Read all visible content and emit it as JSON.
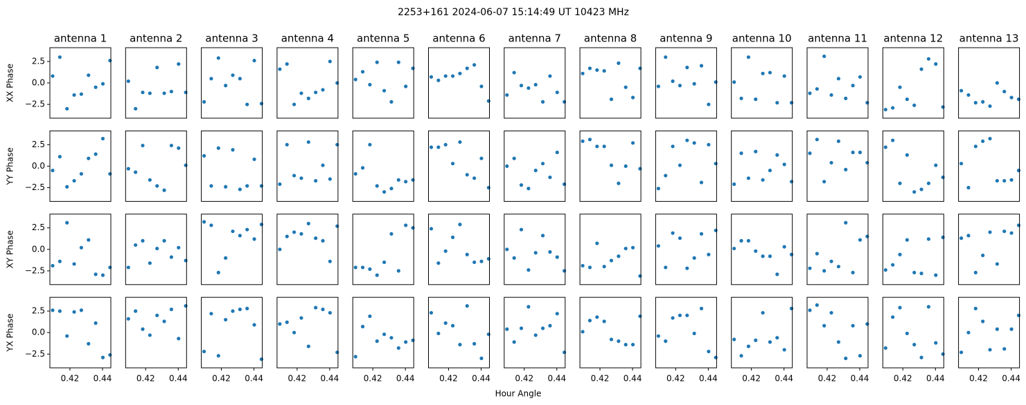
{
  "chart_data": {
    "type": "scatter",
    "title": "2253+161  2024-06-07 15:14:49 UT  10423 MHz",
    "xlabel": "Hour Angle",
    "color": "#1f77b4",
    "x": [
      0.4094,
      0.4138,
      0.4182,
      0.4226,
      0.427,
      0.4314,
      0.4358,
      0.4402,
      0.4446
    ],
    "xlim": [
      0.4077,
      0.4451
    ],
    "xticks": [
      0.42,
      0.44
    ],
    "ylim": [
      -4.1,
      4.1
    ],
    "yticks": [
      {
        "value": 2.5,
        "label": "2.5"
      },
      {
        "value": 0,
        "label": "0.0"
      },
      {
        "value": -2.5,
        "label": "−2.5"
      }
    ],
    "columns": [
      "antenna 1",
      "antenna 2",
      "antenna 3",
      "antenna 4",
      "antenna 5",
      "antenna 6",
      "antenna 7",
      "antenna 8",
      "antenna 9",
      "antenna 10",
      "antenna 11",
      "antenna 12",
      "antenna 13"
    ],
    "rows": [
      {
        "name": "XX Phase",
        "panels": [
          [
            0.8,
            3.0,
            -3.0,
            -1.4,
            -1.3,
            0.9,
            -0.5,
            -0.1,
            2.6
          ],
          [
            0.2,
            -3.0,
            -1.1,
            -1.2,
            1.8,
            -1.2,
            -1.0,
            2.2,
            -1.1
          ],
          [
            -2.2,
            0.5,
            2.9,
            -0.3,
            0.9,
            0.5,
            -2.5,
            2.6,
            -2.4
          ],
          [
            1.6,
            2.2,
            -2.5,
            -1.2,
            -1.8,
            -1.1,
            -0.8,
            2.5,
            0.0
          ],
          [
            0.4,
            1.3,
            -0.2,
            2.4,
            -0.9,
            -2.2,
            2.4,
            -0.4,
            1.7
          ],
          [
            0.7,
            0.3,
            0.8,
            0.8,
            1.1,
            1.7,
            2.1,
            -0.4,
            -2.1
          ],
          [
            -1.4,
            1.2,
            -0.3,
            -0.6,
            -0.2,
            -2.2,
            0.8,
            -1.1,
            -2.2
          ],
          [
            1.1,
            1.7,
            1.5,
            1.4,
            -1.9,
            2.3,
            -0.5,
            -1.7,
            1.7
          ],
          [
            -0.4,
            3.0,
            0.2,
            -0.3,
            1.8,
            -0.1,
            2.0,
            -2.5,
            0.1
          ],
          [
            0.1,
            -1.8,
            3.0,
            -1.9,
            1.1,
            1.2,
            -2.3,
            0.8,
            -2.3
          ],
          [
            -1.2,
            -0.7,
            3.1,
            -1.4,
            0.5,
            -1.8,
            -0.3,
            0.7,
            -2.3
          ],
          [
            -3.1,
            -2.9,
            -0.5,
            -1.9,
            -2.6,
            1.6,
            2.8,
            2.2,
            -2.8
          ],
          [
            -0.9,
            -1.4,
            -2.3,
            -2.2,
            -2.7,
            0.0,
            -1.0,
            -1.7,
            -1.9
          ]
        ]
      },
      {
        "name": "YY Phase",
        "panels": [
          [
            -0.5,
            1.1,
            -2.4,
            -1.7,
            -0.9,
            0.9,
            1.4,
            3.2,
            -0.9
          ],
          [
            -0.3,
            -0.7,
            2.4,
            -1.6,
            -2.3,
            -2.8,
            2.4,
            2.1,
            0.1
          ],
          [
            1.2,
            -2.3,
            2.1,
            -2.4,
            1.9,
            -2.7,
            -2.3,
            0.8,
            -2.3
          ],
          [
            -2.1,
            2.5,
            -1.1,
            -1.4,
            2.8,
            -1.7,
            0.1,
            -1.5,
            2.5
          ],
          [
            -0.9,
            -0.2,
            2.5,
            -2.3,
            -3.0,
            -2.6,
            -1.6,
            -1.8,
            -1.6
          ],
          [
            2.2,
            2.2,
            2.5,
            0.3,
            2.8,
            -1.0,
            -1.4,
            0.9,
            -2.5
          ],
          [
            0.0,
            0.9,
            -2.2,
            -2.6,
            -0.5,
            0.3,
            -1.3,
            1.6,
            -2.1
          ],
          [
            2.9,
            3.1,
            2.3,
            2.3,
            0.1,
            -2.0,
            0.0,
            2.7,
            -0.3
          ],
          [
            -2.6,
            -1.1,
            2.3,
            0.1,
            3.0,
            2.7,
            -1.9,
            2.5,
            0.3
          ],
          [
            -2.1,
            1.5,
            -1.4,
            1.7,
            -1.6,
            -0.5,
            1.3,
            0.2,
            -1.8
          ],
          [
            1.5,
            3.1,
            -1.8,
            0.4,
            2.9,
            -0.4,
            1.6,
            1.6,
            0.4
          ],
          [
            2.2,
            3.0,
            -2.0,
            1.3,
            -3.0,
            -2.7,
            -2.0,
            0.1,
            -1.3
          ],
          [
            0.3,
            -2.5,
            2.3,
            2.9,
            3.2,
            -1.7,
            -1.7,
            -1.6,
            -0.5
          ]
        ]
      },
      {
        "name": "XY Phase",
        "panels": [
          [
            -1.9,
            -1.4,
            3.1,
            -1.7,
            0.2,
            1.1,
            -2.9,
            -3.0,
            -2.1
          ],
          [
            -2.1,
            0.5,
            1.0,
            -1.6,
            0.1,
            1.0,
            -0.9,
            0.2,
            -1.3
          ],
          [
            3.2,
            2.8,
            -2.7,
            -1.0,
            2.1,
            1.6,
            2.3,
            1.2,
            2.9
          ],
          [
            0.0,
            1.5,
            2.0,
            1.8,
            3.0,
            1.3,
            1.0,
            -1.4,
            2.7
          ],
          [
            -2.1,
            -2.1,
            -2.3,
            -3.0,
            -1.5,
            1.8,
            -2.5,
            2.8,
            2.5
          ],
          [
            2.4,
            -1.6,
            -0.2,
            1.4,
            2.9,
            -0.6,
            -1.5,
            -1.4,
            -1.1
          ],
          [
            0.0,
            -1.0,
            2.3,
            -2.4,
            -0.4,
            1.6,
            -0.3,
            -0.9,
            -2.5
          ],
          [
            -1.9,
            -2.1,
            0.7,
            -2.0,
            -1.3,
            -0.8,
            0.1,
            0.2,
            -3.1
          ],
          [
            0.4,
            -2.1,
            1.9,
            1.3,
            -2.2,
            -1.0,
            1.8,
            -0.6,
            2.2
          ],
          [
            0.1,
            1.0,
            1.0,
            -0.2,
            -0.8,
            -0.8,
            -2.9,
            0.3,
            -0.6
          ],
          [
            -2.2,
            -0.5,
            -2.5,
            -1.4,
            -2.0,
            3.1,
            -2.7,
            1.1,
            1.5
          ],
          [
            -2.4,
            -1.8,
            -0.6,
            1.1,
            -2.7,
            -2.8,
            1.2,
            -3.0,
            1.4
          ],
          [
            1.3,
            1.6,
            -2.7,
            -0.7,
            2.0,
            -1.7,
            2.1,
            1.9,
            2.8
          ]
        ]
      },
      {
        "name": "YX Phase",
        "panels": [
          [
            2.6,
            2.5,
            -0.4,
            2.4,
            2.6,
            -1.3,
            1.1,
            -2.9,
            -2.6
          ],
          [
            1.6,
            2.5,
            0.4,
            -0.3,
            2.0,
            1.3,
            2.7,
            -0.7,
            3.1
          ],
          [
            -2.2,
            2.2,
            -2.7,
            1.5,
            2.5,
            2.7,
            2.8,
            0.9,
            -3.1
          ],
          [
            1.0,
            1.2,
            0.0,
            1.7,
            -1.6,
            2.9,
            2.7,
            2.3,
            -2.3
          ],
          [
            -2.8,
            0.7,
            1.9,
            -1.0,
            -0.2,
            -0.6,
            -1.8,
            -1.1,
            -0.9
          ],
          [
            2.3,
            -0.1,
            1.1,
            0.8,
            -1.4,
            3.1,
            -1.3,
            -3.0,
            -0.2
          ],
          [
            0.4,
            -1.1,
            0.5,
            3.0,
            -0.3,
            0.5,
            0.8,
            2.2,
            -2.3
          ],
          [
            0.1,
            1.4,
            1.8,
            1.3,
            -0.8,
            -1.0,
            -1.4,
            -1.4,
            1.9
          ],
          [
            -0.4,
            -1.0,
            1.7,
            2.0,
            2.0,
            -0.1,
            2.8,
            -2.2,
            -2.9
          ],
          [
            -0.8,
            -2.7,
            -1.6,
            -0.9,
            2.3,
            -1.1,
            -0.6,
            -2.0,
            2.8
          ],
          [
            2.6,
            3.2,
            0.8,
            2.3,
            -1.1,
            -3.0,
            0.8,
            -2.7,
            1.0
          ],
          [
            -1.8,
            1.8,
            2.9,
            -0.1,
            -1.4,
            -2.9,
            3.0,
            -1.2,
            -2.5
          ],
          [
            -2.3,
            0.0,
            2.8,
            1.3,
            -2.0,
            0.4,
            -1.9,
            0.4,
            2.0
          ]
        ]
      }
    ]
  }
}
